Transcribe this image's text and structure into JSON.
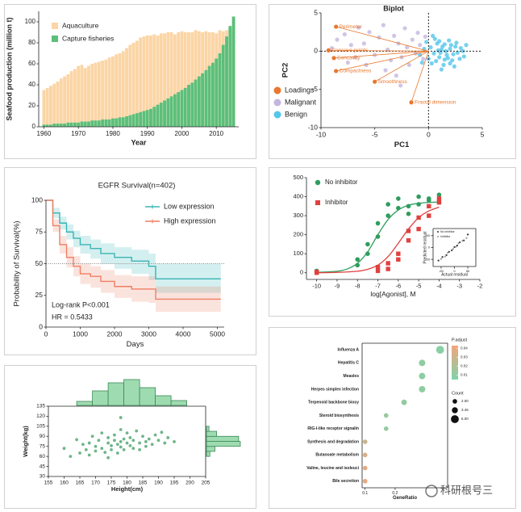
{
  "chart_data": [
    {
      "type": "bar",
      "xlabel": "Year",
      "ylabel": "Seafood production (million t)",
      "x": [
        1960,
        1961,
        1962,
        1963,
        1964,
        1965,
        1966,
        1967,
        1968,
        1969,
        1970,
        1971,
        1972,
        1973,
        1974,
        1975,
        1976,
        1977,
        1978,
        1979,
        1980,
        1981,
        1982,
        1983,
        1984,
        1985,
        1986,
        1987,
        1988,
        1989,
        1990,
        1991,
        1992,
        1993,
        1994,
        1995,
        1996,
        1997,
        1998,
        1999,
        2000,
        2001,
        2002,
        2003,
        2004,
        2005,
        2006,
        2007,
        2008,
        2009,
        2010,
        2011,
        2012,
        2013,
        2014,
        2015
      ],
      "series": [
        {
          "name": "Aquaculture",
          "color": "#fbd5a5",
          "values": [
            35,
            37,
            39,
            41,
            43,
            46,
            48,
            50,
            53,
            55,
            58,
            59,
            56,
            58,
            60,
            61,
            62,
            63,
            64,
            66,
            67,
            69,
            70,
            72,
            75,
            78,
            80,
            82,
            85,
            86,
            87,
            87,
            88,
            87,
            89,
            89,
            90,
            90,
            88,
            90,
            91,
            90,
            90,
            90,
            92,
            91,
            90,
            91,
            90,
            90,
            89,
            92,
            91,
            92,
            93,
            92
          ]
        },
        {
          "name": "Capture fisheries",
          "color": "#5cbf7a",
          "values": [
            2,
            2,
            2,
            3,
            3,
            3,
            3,
            4,
            4,
            4,
            4,
            5,
            5,
            5,
            6,
            6,
            6,
            7,
            7,
            7,
            8,
            8,
            9,
            9,
            10,
            11,
            12,
            13,
            14,
            15,
            16,
            17,
            19,
            21,
            23,
            25,
            27,
            29,
            31,
            33,
            35,
            37,
            40,
            42,
            45,
            48,
            51,
            54,
            58,
            61,
            65,
            70,
            78,
            86,
            96,
            105
          ]
        }
      ],
      "xlim": [
        1958.5,
        2016.5
      ],
      "xticks": [
        1960,
        1970,
        1980,
        1990,
        2000,
        2010
      ],
      "ylim": [
        0,
        110
      ],
      "yticks": [
        0,
        20,
        40,
        60,
        80,
        100
      ],
      "legend": "upper left"
    },
    {
      "type": "biplot",
      "title": "Biplot",
      "xlabel": "PC1",
      "ylabel": "PC2",
      "xlim": [
        -10,
        5
      ],
      "xticks": [
        -10,
        -5,
        0,
        5
      ],
      "ylim": [
        -10,
        5
      ],
      "yticks": [
        -10,
        -5,
        0,
        5
      ],
      "hline": 0,
      "vline": 0,
      "legend": "lower left",
      "loadings": {
        "name": "Loadings",
        "color": "#e8782e",
        "labels": [
          "Perimeter",
          "Concave points",
          "Concavity",
          "Compactness",
          "Smoothness",
          "Fractal dimension"
        ],
        "x": [
          -8.6,
          -9.3,
          -8.8,
          -8.6,
          -5.0,
          -1.6
        ],
        "y": [
          3.2,
          0.1,
          -0.9,
          -2.6,
          -4.0,
          -6.7
        ]
      },
      "series": [
        {
          "name": "Malignant",
          "color": "#c5b6de",
          "x": [
            -8.5,
            -7.8,
            -7.2,
            -6.5,
            -6.0,
            -5.5,
            -5.0,
            -4.6,
            -4.2,
            -3.8,
            -3.5,
            -3.2,
            -2.8,
            -2.5,
            -2.2,
            -2.0,
            -1.8,
            -1.5,
            -1.2,
            -1.0,
            -0.8,
            -0.5,
            -6.8,
            -7.5,
            -9.0,
            -4.0,
            -3.0,
            -5.8,
            -2.6,
            -0.3
          ],
          "values": [
            1.5,
            2.2,
            0.8,
            3.1,
            1.0,
            2.5,
            -0.5,
            1.8,
            3.4,
            0.2,
            -1.2,
            2.0,
            1.0,
            -0.8,
            3.0,
            0.5,
            -1.8,
            1.5,
            -0.3,
            2.4,
            0.8,
            -1.0,
            -0.8,
            -1.5,
            0.4,
            -2.5,
            -3.2,
            -1.8,
            -4.5,
            1.9
          ]
        },
        {
          "name": "Benign",
          "color": "#55c6ea",
          "x": [
            0.2,
            0.5,
            0.8,
            1.0,
            1.2,
            1.5,
            1.7,
            2.0,
            2.2,
            2.5,
            2.7,
            3.0,
            3.3,
            0.0,
            -0.4,
            -0.8,
            0.6,
            1.4,
            1.9,
            2.4,
            0.9,
            1.1,
            1.3,
            1.6,
            1.8,
            2.1,
            2.3,
            2.6,
            2.9,
            3.2,
            0.3,
            0.7,
            1.0,
            1.5,
            2.0,
            -0.2,
            -0.6,
            0.4,
            3.5,
            1.2
          ],
          "values": [
            0.5,
            -0.3,
            1.0,
            -0.8,
            0.2,
            0.9,
            -0.5,
            0.3,
            -1.2,
            0.6,
            -0.2,
            0.4,
            -0.7,
            -1.0,
            0.3,
            -0.5,
            1.6,
            -1.8,
            1.4,
            -2.0,
            0.1,
            -0.2,
            0.6,
            0.0,
            -0.9,
            0.8,
            -0.4,
            1.1,
            -1.0,
            0.0,
            -1.6,
            -1.3,
            1.3,
            -1.1,
            -1.6,
            1.2,
            -1.5,
            2.0,
            0.8,
            -2.4
          ]
        }
      ]
    },
    {
      "type": "survival",
      "title": "EGFR Survival(n=402)",
      "xlabel": "Days",
      "ylabel": "Probability of Survival(%)",
      "xlim": [
        0,
        5200
      ],
      "xticks": [
        0,
        1000,
        2000,
        3000,
        4000,
        5000
      ],
      "ylim": [
        0,
        100
      ],
      "yticks": [
        0,
        25,
        50,
        75,
        100
      ],
      "hline": 50,
      "legend": "upper right",
      "annotations": [
        "Log-rank P<0.001",
        "HR = 0.5433"
      ],
      "series": [
        {
          "name": "Low expression",
          "color": "#3bb5b5",
          "x": [
            0,
            200,
            400,
            600,
            800,
            1000,
            1300,
            1600,
            2000,
            2500,
            3000,
            3200,
            5100
          ],
          "values": [
            100,
            90,
            82,
            75,
            70,
            65,
            62,
            58,
            55,
            52,
            48,
            38,
            38
          ],
          "lower": [
            100,
            86,
            77,
            69,
            63,
            58,
            54,
            50,
            46,
            42,
            37,
            27,
            27
          ],
          "upper": [
            100,
            94,
            87,
            81,
            76,
            72,
            69,
            66,
            63,
            61,
            58,
            50,
            50
          ]
        },
        {
          "name": "High expression",
          "color": "#ef7f63",
          "x": [
            0,
            200,
            400,
            600,
            800,
            1000,
            1300,
            1600,
            2000,
            2500,
            3000,
            3200,
            5100
          ],
          "values": [
            100,
            80,
            65,
            55,
            48,
            42,
            40,
            36,
            32,
            30,
            30,
            22,
            22
          ],
          "lower": [
            100,
            75,
            58,
            47,
            40,
            34,
            31,
            27,
            23,
            20,
            19,
            12,
            12
          ],
          "upper": [
            100,
            85,
            72,
            63,
            56,
            50,
            48,
            45,
            41,
            40,
            40,
            32,
            32
          ]
        }
      ]
    },
    {
      "type": "dose_response",
      "xlabel": "log[Agonist], M",
      "xlim": [
        -10.5,
        -2
      ],
      "xticks": [
        -10,
        -9,
        -8,
        -7,
        -6,
        -5,
        -4,
        -3,
        -2
      ],
      "ylim": [
        -35,
        500
      ],
      "yticks": [
        0,
        100,
        200,
        300,
        400,
        500
      ],
      "legend": "upper left",
      "series": [
        {
          "name": "No inhibitor",
          "color": "#2e9d5e",
          "marker": "circle",
          "x": [
            -10,
            -10,
            -8,
            -8,
            -7.5,
            -7.5,
            -7,
            -7,
            -6.5,
            -6.5,
            -6,
            -6,
            -5.5,
            -5.5,
            -5,
            -5,
            -4.5,
            -4.5,
            -4,
            -4
          ],
          "values": [
            5,
            10,
            40,
            70,
            100,
            150,
            190,
            260,
            300,
            360,
            340,
            390,
            310,
            350,
            360,
            400,
            380,
            390,
            410,
            370
          ],
          "curve": {
            "x": [
              -10,
              -9,
              -8.5,
              -8,
              -7.5,
              -7,
              -6.5,
              -6,
              -5.5,
              -5,
              -4.5,
              -4
            ],
            "values": [
              2,
              8,
              20,
              50,
              110,
              200,
              280,
              330,
              355,
              365,
              370,
              372
            ]
          }
        },
        {
          "name": "Inhibitor",
          "color": "#e0413f",
          "marker": "square",
          "x": [
            -10,
            -10,
            -7,
            -7,
            -6.5,
            -6.5,
            -6,
            -6,
            -5.5,
            -5.5,
            -5,
            -5,
            -4.5,
            -4.5,
            -4,
            -4
          ],
          "values": [
            0,
            5,
            10,
            30,
            20,
            50,
            70,
            100,
            170,
            220,
            230,
            290,
            300,
            350,
            370,
            390
          ],
          "curve": {
            "x": [
              -10,
              -9,
              -8,
              -7.5,
              -7,
              -6.5,
              -6,
              -5.5,
              -5,
              -4.5,
              -4
            ],
            "values": [
              0,
              2,
              8,
              18,
              40,
              85,
              155,
              230,
              290,
              325,
              345
            ]
          }
        }
      ]
    },
    {
      "type": "scatter",
      "xlabel": "Actual residual",
      "ylabel": "Predicted residual",
      "xlim": [
        -80,
        80
      ],
      "xticks": [
        -50,
        0,
        50
      ],
      "ylim": [
        -80,
        80
      ],
      "yticks": [
        -50,
        0,
        50
      ],
      "legend": "upper left",
      "series": [
        {
          "name": "No inhibitor",
          "color": "#333333",
          "x": [
            -60,
            -45,
            -30,
            -20,
            -10,
            0,
            10,
            20,
            35,
            50
          ],
          "values": [
            -55,
            -40,
            -32,
            -18,
            -12,
            2,
            8,
            22,
            30,
            55
          ]
        },
        {
          "name": "Inhibitor",
          "color": "#999999",
          "x": [
            -50,
            -35,
            -25,
            -5,
            5,
            15,
            30,
            45
          ],
          "values": [
            -48,
            -38,
            -22,
            -6,
            3,
            18,
            28,
            40
          ]
        }
      ]
    },
    {
      "type": "marginal_scatter",
      "xlabel": "Height(cm)",
      "ylabel": "Weight(kg)",
      "xlim": [
        155,
        205
      ],
      "xticks": [
        155,
        160,
        165,
        170,
        175,
        180,
        185,
        190,
        195,
        200,
        205
      ],
      "ylim": [
        30,
        135
      ],
      "yticks": [
        30,
        45,
        60,
        75,
        90,
        105,
        120,
        135
      ],
      "color": "#3f9e62",
      "hist_color": "#9fdbb1",
      "hist_edge": "#3b8a57",
      "x": [
        160,
        162,
        164,
        165,
        166,
        167,
        168,
        168,
        169,
        170,
        170,
        171,
        172,
        172,
        173,
        174,
        174,
        175,
        175,
        176,
        176,
        177,
        177,
        178,
        178,
        178,
        179,
        179,
        180,
        180,
        181,
        181,
        182,
        182,
        183,
        184,
        184,
        185,
        186,
        186,
        187,
        188,
        189,
        190,
        191,
        192,
        193,
        195,
        178,
        174
      ],
      "values": [
        72,
        60,
        85,
        65,
        78,
        70,
        80,
        62,
        90,
        75,
        68,
        84,
        72,
        95,
        66,
        80,
        88,
        76,
        70,
        84,
        92,
        78,
        65,
        82,
        74,
        100,
        86,
        70,
        80,
        95,
        76,
        88,
        72,
        84,
        98,
        80,
        70,
        90,
        82,
        75,
        86,
        78,
        92,
        84,
        96,
        80,
        88,
        82,
        118,
        58
      ],
      "hist_x": {
        "bins": [
          164,
          169,
          174,
          179,
          184,
          189,
          194,
          199
        ],
        "counts": [
          5,
          18,
          28,
          32,
          22,
          12,
          6
        ]
      },
      "hist_y": {
        "bins": [
          60,
          67.5,
          75,
          82.5,
          90,
          97.5,
          105
        ],
        "counts": [
          4,
          10,
          40,
          38,
          12,
          3
        ]
      }
    },
    {
      "type": "dot",
      "xlabel": "GeneRatio",
      "categories": [
        "Influenza A",
        "Hepatitis C",
        "Measles",
        "Herpes simplex infection",
        "Terpenoid backbone biosy",
        "Steroid biosynthesis",
        "RIG-I-like receptor signalin",
        "Synthesis and degradation",
        "Butanoate metabolism",
        "Valine, leucine and isoleuci",
        "Bile secretion"
      ],
      "values": [
        0.35,
        0.29,
        0.29,
        0.29,
        0.23,
        0.17,
        0.17,
        0.1,
        0.1,
        0.1,
        0.1
      ],
      "sizes": [
        6,
        4,
        4,
        4,
        3,
        2,
        2,
        2,
        2,
        2,
        2
      ],
      "p_adjust": [
        0.008,
        0.01,
        0.01,
        0.01,
        0.012,
        0.012,
        0.012,
        0.03,
        0.035,
        0.038,
        0.04
      ],
      "xlim": [
        0.09,
        0.375
      ],
      "xticks": [
        0.1,
        0.2
      ],
      "color_title": "P.adjust",
      "clim": [
        0.005,
        0.043
      ],
      "color_ticks": [
        0.04,
        0.03,
        0.02,
        0.01
      ],
      "colors": [
        "#7fd3a8",
        "#f4a47c"
      ],
      "size_title": "Count",
      "size_ticks": [
        {
          "value": 2,
          "label": "2.00"
        },
        {
          "value": 3.46,
          "label": "3.46"
        },
        {
          "value": 6,
          "label": "6.00"
        }
      ]
    }
  ],
  "watermark": "科研根号三"
}
